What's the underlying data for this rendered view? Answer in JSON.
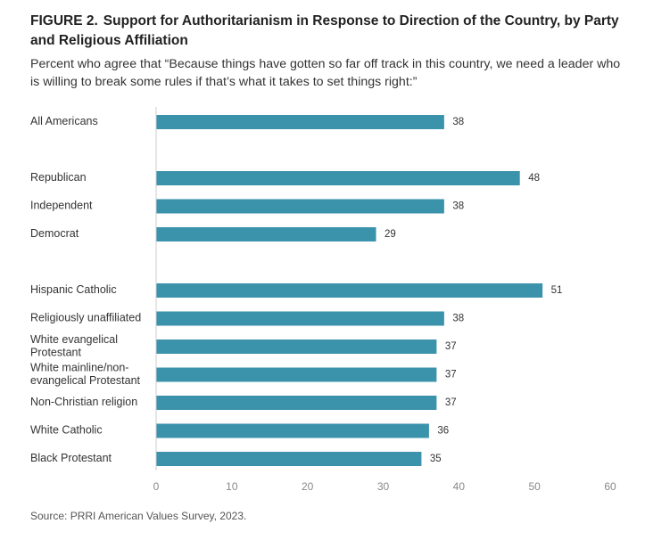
{
  "figure": {
    "label": "FIGURE 2.",
    "title": "Support for Authoritarianism in Response to Direction of the Country, by Party and Religious Affiliation",
    "subtitle": "Percent who agree that “Because things have gotten so far off track in this country, we need a leader who is willing to break some rules if that’s what it takes to set things right:”",
    "source": "Source: PRRI American Values Survey, 2023."
  },
  "colors": {
    "bar": "#3a92ab",
    "axis": "#cccccc",
    "tick_text": "#888888",
    "label_text": "#333333"
  },
  "chart_data": {
    "type": "bar",
    "orientation": "horizontal",
    "xlim": [
      0,
      60
    ],
    "x_ticks": [
      0,
      10,
      20,
      30,
      40,
      50,
      60
    ],
    "grid": false,
    "groups": [
      {
        "categories": [
          "All Americans"
        ],
        "values": [
          38
        ]
      },
      {
        "categories": [
          "Republican",
          "Independent",
          "Democrat"
        ],
        "values": [
          48,
          38,
          29
        ]
      },
      {
        "categories": [
          "Hispanic Catholic",
          "Religiously unaffiliated",
          "White evangelical Protestant",
          "White mainline/non-evangelical Protestant",
          "Non-Christian religion",
          "White Catholic",
          "Black Protestant"
        ],
        "category_lines": [
          [
            "Hispanic Catholic"
          ],
          [
            "Religiously unaffiliated"
          ],
          [
            "White evangelical",
            "Protestant"
          ],
          [
            "White mainline/non-",
            "evangelical Protestant"
          ],
          [
            "Non-Christian religion"
          ],
          [
            "White Catholic"
          ],
          [
            "Black Protestant"
          ]
        ],
        "values": [
          51,
          38,
          37,
          37,
          37,
          36,
          35
        ]
      }
    ]
  }
}
